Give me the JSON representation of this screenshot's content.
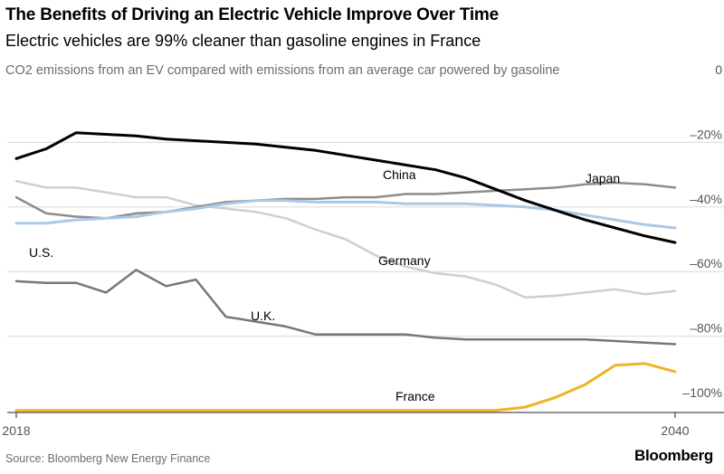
{
  "header": {
    "title": "The Benefits of Driving an Electric Vehicle Improve Over Time",
    "subtitle": "Electric vehicles are 99% cleaner than gasoline engines in France",
    "description": "CO2 emissions from an EV compared with emissions from an average car powered by gasoline"
  },
  "footer": {
    "source": "Source: Bloomberg New Energy Finance",
    "brand": "Bloomberg"
  },
  "chart_data": {
    "type": "line",
    "title": "The Benefits of Driving an Electric Vehicle Improve Over Time",
    "subtitle": "Electric vehicles are 99% cleaner than gasoline engines in France",
    "ylabel": "CO2 emissions from an EV compared with emissions from an average car powered by gasoline",
    "xlim": [
      2018,
      2040
    ],
    "ylim": [
      -100,
      0
    ],
    "x_tick_labels": [
      "2018",
      "2040"
    ],
    "y_ticks": [
      0,
      -20,
      -40,
      -60,
      -80,
      -100
    ],
    "y_tick_labels": [
      "0",
      "–20%",
      "–40%",
      "–60%",
      "–80%",
      "–100%"
    ],
    "grid": true,
    "legend": "inline-labels",
    "x": [
      2018,
      2019,
      2020,
      2021,
      2022,
      2023,
      2024,
      2025,
      2026,
      2027,
      2028,
      2029,
      2030,
      2031,
      2032,
      2033,
      2034,
      2035,
      2036,
      2037,
      2038,
      2039,
      2040
    ],
    "series": [
      {
        "name": "China",
        "color": "#000000",
        "width": 3,
        "values": [
          -25,
          -22,
          -17,
          -17.5,
          -18,
          -19,
          -19.5,
          -20,
          -20.5,
          -21.5,
          -22.5,
          -24,
          -25.5,
          -27,
          -28.5,
          -31,
          -34.5,
          -38,
          -41,
          -44,
          -46.5,
          -49,
          -51
        ]
      },
      {
        "name": "Japan",
        "color": "#8c8c8c",
        "width": 2.5,
        "values": [
          -37,
          -42,
          -43,
          -43.5,
          -42,
          -41.5,
          -40,
          -38.5,
          -38,
          -37.5,
          -37.5,
          -37,
          -37,
          -36,
          -36,
          -35.5,
          -35,
          -34.5,
          -34,
          -33,
          -32.5,
          -33,
          -34
        ]
      },
      {
        "name": "U.S.",
        "color": "#a8c9e8",
        "width": 3,
        "values": [
          -45,
          -45,
          -44,
          -43.5,
          -43,
          -41.5,
          -40.5,
          -39,
          -38,
          -38,
          -38.5,
          -38.5,
          -38.5,
          -39,
          -39,
          -39,
          -39.5,
          -40,
          -41,
          -42.5,
          -44,
          -45.5,
          -46.5
        ]
      },
      {
        "name": "Germany",
        "color": "#cfcfcf",
        "width": 2.5,
        "values": [
          -32,
          -34,
          -34,
          -35.5,
          -37,
          -37,
          -39.5,
          -40.5,
          -41.5,
          -43.5,
          -47,
          -50,
          -55,
          -58.5,
          -60.5,
          -61.5,
          -64,
          -68,
          -67.5,
          -66.5,
          -65.5,
          -67,
          -66
        ]
      },
      {
        "name": "U.K.",
        "color": "#777777",
        "width": 2.5,
        "values": [
          -63,
          -63.5,
          -63.5,
          -66.5,
          -59.5,
          -64.5,
          -62.5,
          -74,
          -75.5,
          -77,
          -79.5,
          -79.5,
          -79.5,
          -79.5,
          -80.5,
          -81,
          -81,
          -81,
          -81,
          -81,
          -81.5,
          -82,
          -82.5
        ]
      },
      {
        "name": "France",
        "color": "#f0b323",
        "width": 3,
        "values": [
          -103,
          -103,
          -103,
          -103,
          -103,
          -103,
          -103,
          -103,
          -103,
          -103,
          -103,
          -103,
          -103,
          -103,
          -103,
          -103,
          -103,
          -102,
          -99,
          -95,
          -89,
          -88.5,
          -91
        ]
      }
    ]
  }
}
